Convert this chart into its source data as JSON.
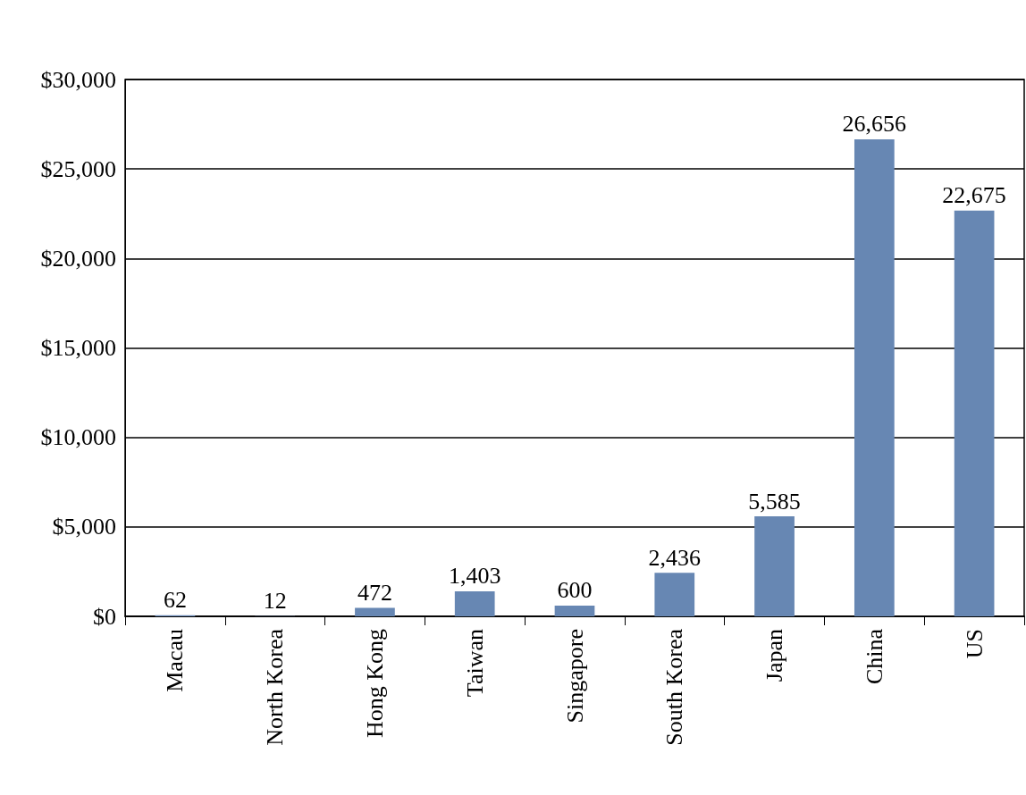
{
  "chart_data": {
    "type": "bar",
    "categories": [
      "Macau",
      "North Korea",
      "Hong Kong",
      "Taiwan",
      "Singapore",
      "South Korea",
      "Japan",
      "China",
      "US"
    ],
    "values": [
      62,
      12,
      472,
      1403,
      600,
      2436,
      5585,
      26656,
      22675
    ],
    "value_labels": [
      "62",
      "12",
      "472",
      "1,403",
      "600",
      "2,436",
      "5,585",
      "26,656",
      "22,675"
    ],
    "color": "#6787b3",
    "ylim": [
      0,
      30000
    ],
    "yticks": [
      {
        "value": 0,
        "label": "$0"
      },
      {
        "value": 5000,
        "label": "$5,000"
      },
      {
        "value": 10000,
        "label": "$10,000"
      },
      {
        "value": 15000,
        "label": "$15,000"
      },
      {
        "value": 20000,
        "label": "$20,000"
      },
      {
        "value": 25000,
        "label": "$25,000"
      },
      {
        "value": 30000,
        "label": "$30,000"
      }
    ],
    "grid": "y"
  }
}
